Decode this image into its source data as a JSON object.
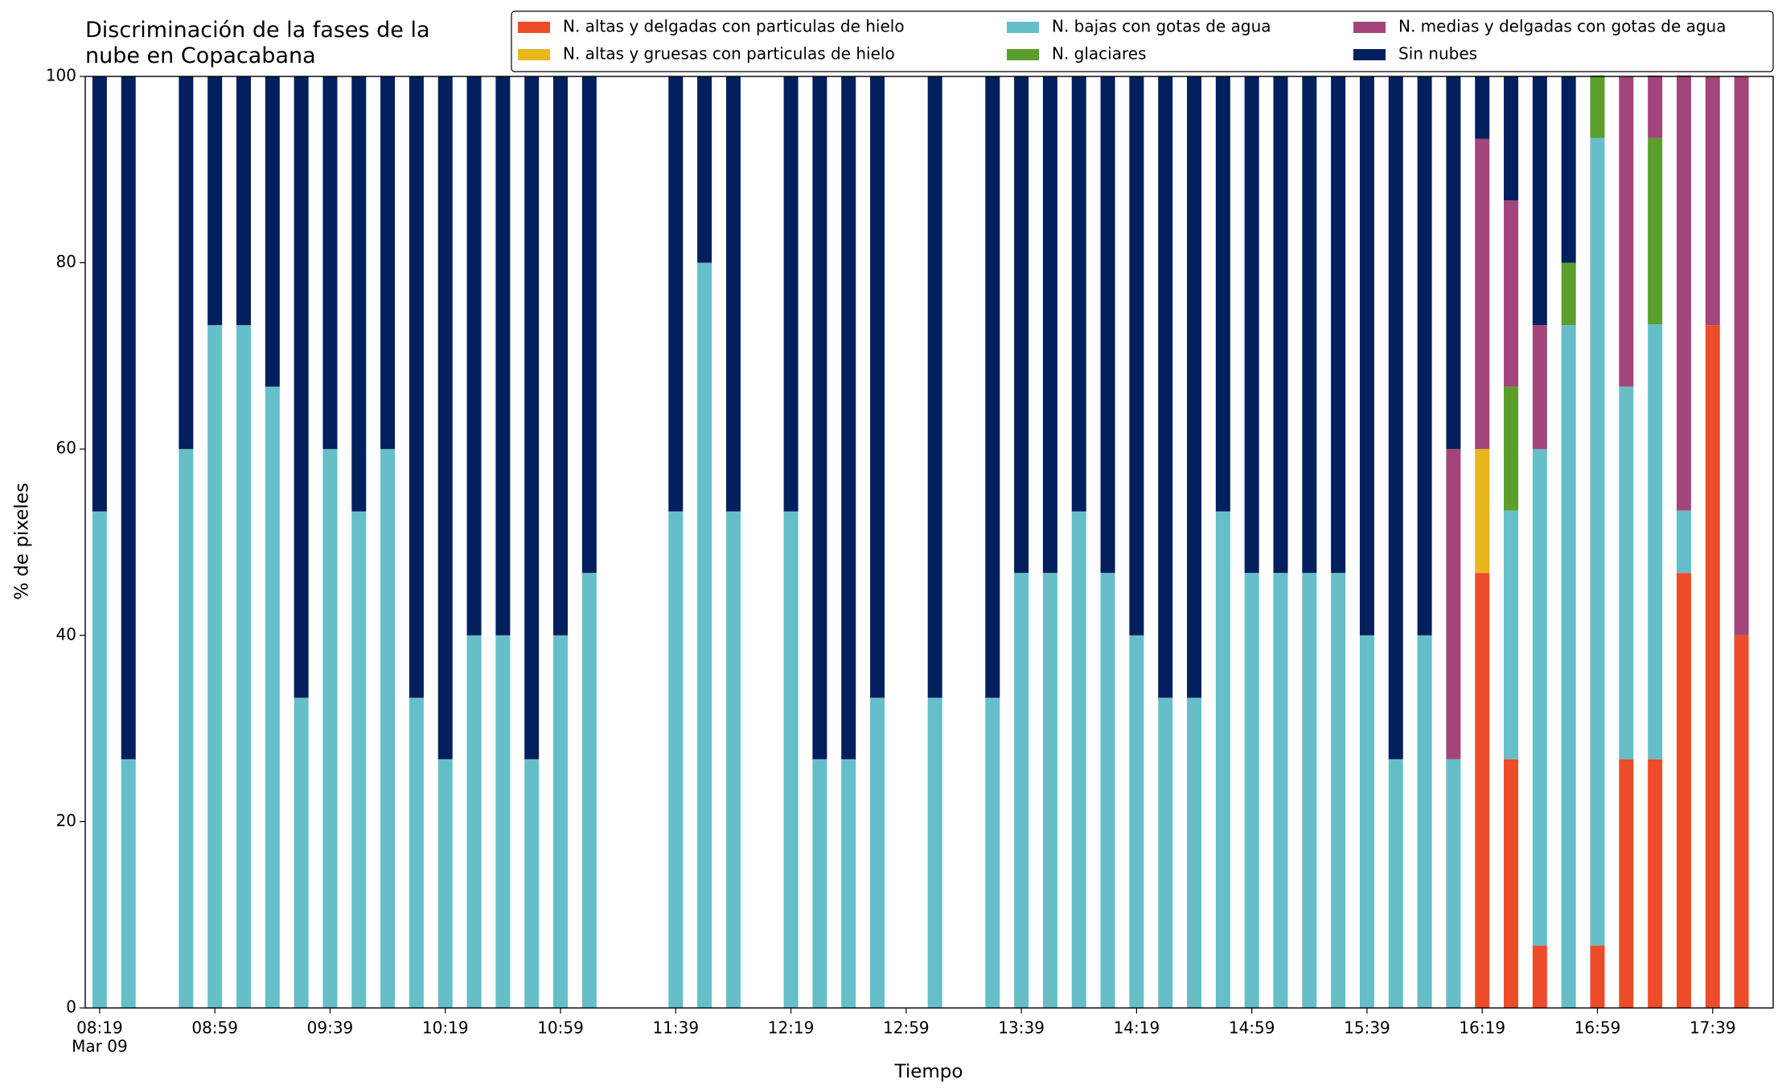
{
  "chart_data": {
    "type": "stacked_bar",
    "title": "Discriminación de la fases de la nube en Copacabana",
    "xlabel": "Tiempo",
    "ylabel": "% de pixeles",
    "date_label": "Mar 09",
    "legend": "upper right",
    "x": [
      "08:19",
      "08:29",
      "08:49",
      "08:59",
      "09:09",
      "09:19",
      "09:29",
      "09:39",
      "09:49",
      "09:59",
      "10:09",
      "10:19",
      "10:29",
      "10:39",
      "10:49",
      "10:59",
      "11:09",
      "11:39",
      "11:49",
      "11:59",
      "12:19",
      "12:29",
      "12:39",
      "12:49",
      "13:09",
      "13:29",
      "13:39",
      "13:49",
      "13:59",
      "14:09",
      "14:19",
      "14:29",
      "14:39",
      "14:49",
      "14:59",
      "15:09",
      "15:19",
      "15:29",
      "15:39",
      "15:49",
      "15:59",
      "16:09",
      "16:19",
      "16:29",
      "16:39",
      "16:49",
      "16:59",
      "17:09",
      "17:19",
      "17:29",
      "17:39",
      "17:49"
    ],
    "xlim": [
      "08:14",
      "18:00"
    ],
    "xticks": [
      "08:19",
      "08:59",
      "09:39",
      "10:19",
      "10:59",
      "11:39",
      "12:19",
      "12:59",
      "13:39",
      "14:19",
      "14:59",
      "15:39",
      "16:19",
      "16:59",
      "17:39"
    ],
    "ylim": [
      0,
      100
    ],
    "yticks": [
      0,
      20,
      40,
      60,
      80,
      100
    ],
    "series": [
      {
        "name": "N. altas y delgadas con particulas de hielo",
        "color": "#ee4b2b",
        "values": [
          0,
          0,
          0,
          0,
          0,
          0,
          0,
          0,
          0,
          0,
          0,
          0,
          0,
          0,
          0,
          0,
          0,
          0,
          0,
          0,
          0,
          0,
          0,
          0,
          0,
          0,
          0,
          0,
          0,
          0,
          0,
          0,
          0,
          0,
          0,
          0,
          0,
          0,
          0,
          0,
          0,
          0,
          46.7,
          26.7,
          6.7,
          0,
          6.7,
          26.7,
          26.7,
          46.7,
          73.3,
          40
        ]
      },
      {
        "name": "N. altas y gruesas con particulas de hielo",
        "color": "#e8b71a",
        "values": [
          0,
          0,
          0,
          0,
          0,
          0,
          0,
          0,
          0,
          0,
          0,
          0,
          0,
          0,
          0,
          0,
          0,
          0,
          0,
          0,
          0,
          0,
          0,
          0,
          0,
          0,
          0,
          0,
          0,
          0,
          0,
          0,
          0,
          0,
          0,
          0,
          0,
          0,
          0,
          0,
          0,
          0,
          13.3,
          0,
          0,
          0,
          0,
          0,
          0,
          0,
          0,
          0
        ]
      },
      {
        "name": "N. bajas con gotas de agua",
        "color": "#66bec8",
        "values": [
          53.3,
          26.7,
          60,
          73.3,
          73.3,
          66.7,
          33.3,
          60,
          53.3,
          60,
          33.3,
          26.7,
          40,
          40,
          26.7,
          40,
          46.7,
          53.3,
          80,
          53.3,
          53.3,
          26.7,
          26.7,
          33.3,
          33.3,
          33.3,
          46.7,
          46.7,
          53.3,
          46.7,
          40,
          33.3,
          33.3,
          53.3,
          46.7,
          46.7,
          46.7,
          46.7,
          40,
          26.7,
          40,
          26.7,
          0,
          26.7,
          53.3,
          73.3,
          86.7,
          40,
          46.7,
          6.7,
          0,
          0
        ]
      },
      {
        "name": "N. glaciares",
        "color": "#5a9e2c",
        "values": [
          0,
          0,
          0,
          0,
          0,
          0,
          0,
          0,
          0,
          0,
          0,
          0,
          0,
          0,
          0,
          0,
          0,
          0,
          0,
          0,
          0,
          0,
          0,
          0,
          0,
          0,
          0,
          0,
          0,
          0,
          0,
          0,
          0,
          0,
          0,
          0,
          0,
          0,
          0,
          0,
          0,
          0,
          0,
          13.3,
          0,
          6.7,
          6.7,
          0,
          20,
          0,
          0,
          0
        ]
      },
      {
        "name": "N. medias y delgadas con gotas de agua",
        "color": "#a2457a",
        "values": [
          0,
          0,
          0,
          0,
          0,
          0,
          0,
          0,
          0,
          0,
          0,
          0,
          0,
          0,
          0,
          0,
          0,
          0,
          0,
          0,
          0,
          0,
          0,
          0,
          0,
          0,
          0,
          0,
          0,
          0,
          0,
          0,
          0,
          0,
          0,
          0,
          0,
          0,
          0,
          0,
          0,
          33.3,
          33.3,
          20,
          13.3,
          0,
          0,
          33.3,
          6.7,
          46.7,
          26.7,
          60
        ]
      },
      {
        "name": "Sin nubes",
        "color": "#041f5e",
        "values": [
          46.7,
          73.3,
          40,
          26.7,
          26.7,
          33.3,
          66.7,
          40,
          46.7,
          40,
          66.7,
          73.3,
          60,
          60,
          73.3,
          60,
          53.3,
          46.7,
          20,
          46.7,
          46.7,
          73.3,
          73.3,
          66.7,
          66.7,
          66.7,
          53.3,
          53.3,
          46.7,
          53.3,
          60,
          66.7,
          66.7,
          46.7,
          53.3,
          53.3,
          53.3,
          53.3,
          60,
          73.3,
          60,
          40,
          6.7,
          13.3,
          26.7,
          20,
          0,
          0,
          0,
          0,
          0,
          0
        ]
      }
    ]
  }
}
